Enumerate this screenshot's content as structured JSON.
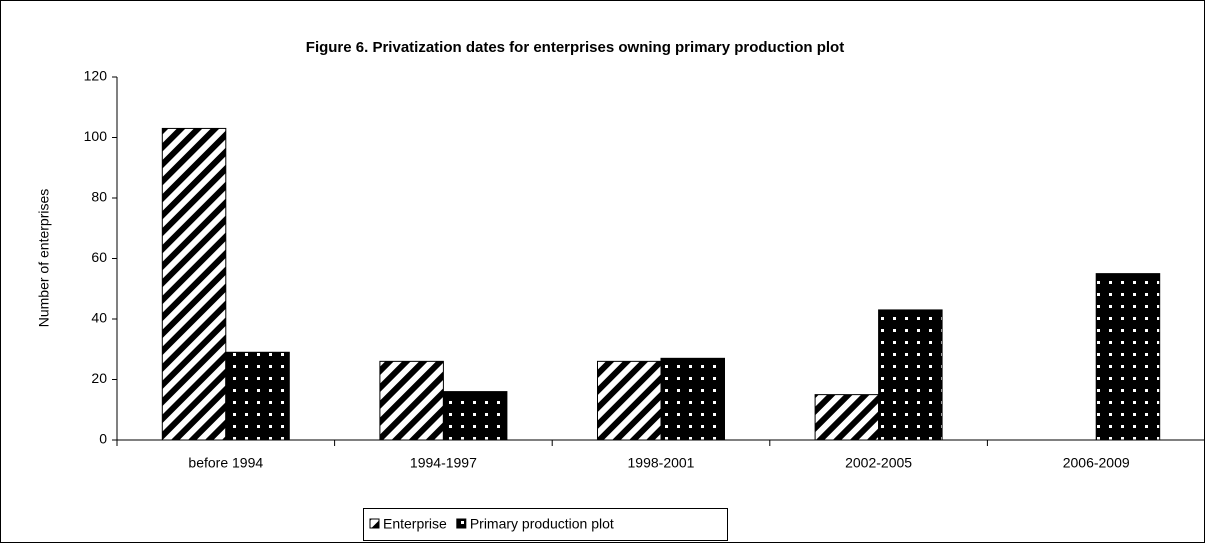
{
  "chart_data": {
    "type": "bar",
    "title": "Figure 6. Privatization dates for enterprises owning primary production plot",
    "y_label": "Number of enterprises",
    "categories": [
      "before 1994",
      "1994-1997",
      "1998-2001",
      "2002-2005",
      "2006-2009"
    ],
    "series": [
      {
        "name": "Enterprise",
        "color": "#000000",
        "pattern": "stripes",
        "values": [
          103,
          26,
          26,
          15,
          0
        ]
      },
      {
        "name": "Primary production plot",
        "color": "#000000",
        "pattern": "dots",
        "values": [
          29,
          16,
          27,
          43,
          55
        ]
      }
    ],
    "ylim": [
      0,
      120
    ],
    "yticks": [
      0,
      20,
      40,
      60,
      80,
      100,
      120
    ],
    "grid": false,
    "legend": "bottom"
  }
}
